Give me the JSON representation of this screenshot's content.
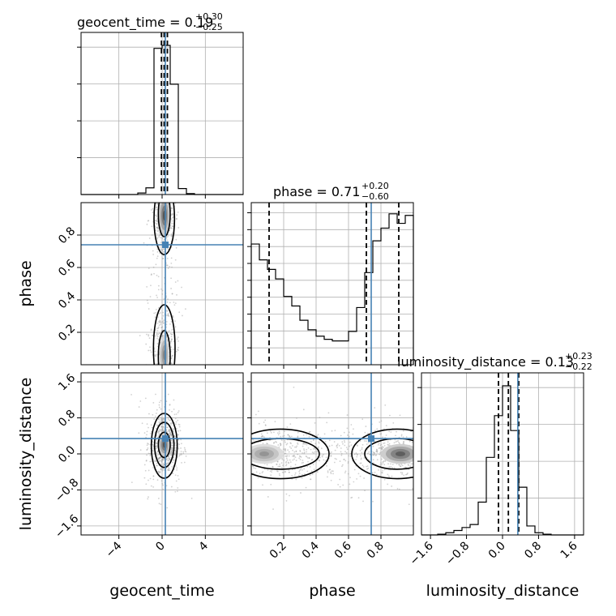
{
  "chart_data": {
    "type": "corner",
    "parameters": [
      {
        "name": "geocent_time",
        "xlabel": "geocent_time",
        "title_main": "geocent_time = 0.19",
        "title_plus": "+0.30",
        "title_minus": "−0.25",
        "range": [
          -7.5,
          7.5
        ],
        "ticks": [
          -4,
          0,
          4
        ],
        "tick_labels": [
          "−4",
          "0",
          "4"
        ],
        "quantiles": [
          -0.06,
          0.19,
          0.49
        ],
        "truth": 0.3,
        "hist": {
          "edges": [
            -7.5,
            -6.75,
            -6.0,
            -5.25,
            -4.5,
            -3.75,
            -3.0,
            -2.25,
            -1.5,
            -0.75,
            0.0,
            0.75,
            1.5,
            2.25,
            3.0,
            3.75,
            4.5,
            5.25,
            6.0,
            6.75,
            7.5
          ],
          "counts": [
            0,
            0,
            0,
            0,
            0,
            0,
            0,
            0.01,
            0.045,
            0.98,
            1.0,
            0.74,
            0.04,
            0.006,
            0,
            0,
            0,
            0,
            0,
            0
          ]
        },
        "yticks_unlabeled": 4
      },
      {
        "name": "phase",
        "xlabel": "phase",
        "ylabel": "phase",
        "title_main": "phase = 0.71",
        "title_plus": "+0.20",
        "title_minus": "−0.60",
        "range": [
          0.0,
          1.0
        ],
        "ticks": [
          0.2,
          0.4,
          0.6,
          0.8
        ],
        "tick_labels": [
          "0.2",
          "0.4",
          "0.6",
          "0.8"
        ],
        "quantiles": [
          0.11,
          0.71,
          0.91
        ],
        "truth": 0.74,
        "hist": {
          "edges": [
            0.0,
            0.05,
            0.1,
            0.15,
            0.2,
            0.25,
            0.3,
            0.35,
            0.4,
            0.45,
            0.5,
            0.55,
            0.6,
            0.65,
            0.7,
            0.75,
            0.8,
            0.85,
            0.9,
            0.95,
            1.0
          ],
          "counts": [
            0.76,
            0.66,
            0.6,
            0.54,
            0.43,
            0.37,
            0.28,
            0.22,
            0.18,
            0.16,
            0.15,
            0.15,
            0.21,
            0.36,
            0.58,
            0.78,
            0.86,
            0.95,
            0.89,
            0.94
          ]
        },
        "yticks_unlabeled": 9
      },
      {
        "name": "luminosity_distance",
        "xlabel": "luminosity_distance",
        "ylabel": "luminosity_distance",
        "title_main": "luminosity_distance = 0.13",
        "title_plus": "+0.23",
        "title_minus": "−0.22",
        "range": [
          -1.8,
          1.8
        ],
        "ticks": [
          -1.6,
          -0.8,
          0.0,
          0.8,
          1.6
        ],
        "tick_labels": [
          "−1.6",
          "−0.8",
          "0.0",
          "0.8",
          "1.6"
        ],
        "quantiles": [
          -0.09,
          0.13,
          0.36
        ],
        "truth": 0.34,
        "hist": {
          "edges": [
            -1.8,
            -1.62,
            -1.44,
            -1.26,
            -1.08,
            -0.9,
            -0.72,
            -0.54,
            -0.36,
            -0.18,
            0.0,
            0.18,
            0.36,
            0.54,
            0.72,
            0.9,
            1.08,
            1.26,
            1.44,
            1.62,
            1.8
          ],
          "counts": [
            0,
            0,
            0.005,
            0.015,
            0.03,
            0.05,
            0.07,
            0.22,
            0.52,
            0.8,
            1.0,
            0.7,
            0.32,
            0.06,
            0.015,
            0.005,
            0,
            0,
            0,
            0
          ]
        },
        "yticks_unlabeled": 4
      }
    ],
    "pairs": [
      {
        "x": "geocent_time",
        "y": "phase",
        "contours": [
          {
            "cx": 0.2,
            "cy": 0.93,
            "rx": 0.55,
            "ry": 0.14
          },
          {
            "cx": 0.2,
            "cy": 0.9,
            "rx": 0.95,
            "ry": 0.22
          },
          {
            "cx": 0.2,
            "cy": 0.05,
            "rx": 0.55,
            "ry": 0.16
          },
          {
            "cx": 0.2,
            "cy": 0.1,
            "rx": 1.0,
            "ry": 0.27
          }
        ],
        "density": [
          {
            "cx": 0.2,
            "cy": 0.92,
            "rx": 0.5,
            "ry": 0.12,
            "level": 0.95
          },
          {
            "cx": 0.2,
            "cy": 0.06,
            "rx": 0.45,
            "ry": 0.12,
            "level": 0.7
          }
        ]
      },
      {
        "x": "geocent_time",
        "y": "luminosity_distance",
        "contours": [
          {
            "cx": 0.2,
            "cy": 0.2,
            "rx": 0.55,
            "ry": 0.28
          },
          {
            "cx": 0.2,
            "cy": 0.2,
            "rx": 0.9,
            "ry": 0.5
          },
          {
            "cx": 0.2,
            "cy": 0.18,
            "rx": 1.2,
            "ry": 0.72
          }
        ],
        "density": [
          {
            "cx": 0.2,
            "cy": 0.2,
            "rx": 0.5,
            "ry": 0.25,
            "level": 0.95
          }
        ]
      },
      {
        "x": "phase",
        "y": "luminosity_distance",
        "contours": [
          {
            "cx": 0.18,
            "cy": 0.0,
            "rx": 0.24,
            "ry": 0.34
          },
          {
            "cx": 0.18,
            "cy": 0.0,
            "rx": 0.3,
            "ry": 0.55
          },
          {
            "cx": 0.9,
            "cy": 0.0,
            "rx": 0.2,
            "ry": 0.34
          },
          {
            "cx": 0.9,
            "cy": 0.0,
            "rx": 0.28,
            "ry": 0.55
          }
        ],
        "density": [
          {
            "cx": 0.08,
            "cy": 0.0,
            "rx": 0.12,
            "ry": 0.22,
            "level": 0.6
          },
          {
            "cx": 0.92,
            "cy": 0.0,
            "rx": 0.12,
            "ry": 0.22,
            "level": 0.9
          }
        ]
      }
    ],
    "grid": true,
    "truth_color": "#4682b4",
    "hist_color": "#000000",
    "contour_color": "#000000"
  }
}
